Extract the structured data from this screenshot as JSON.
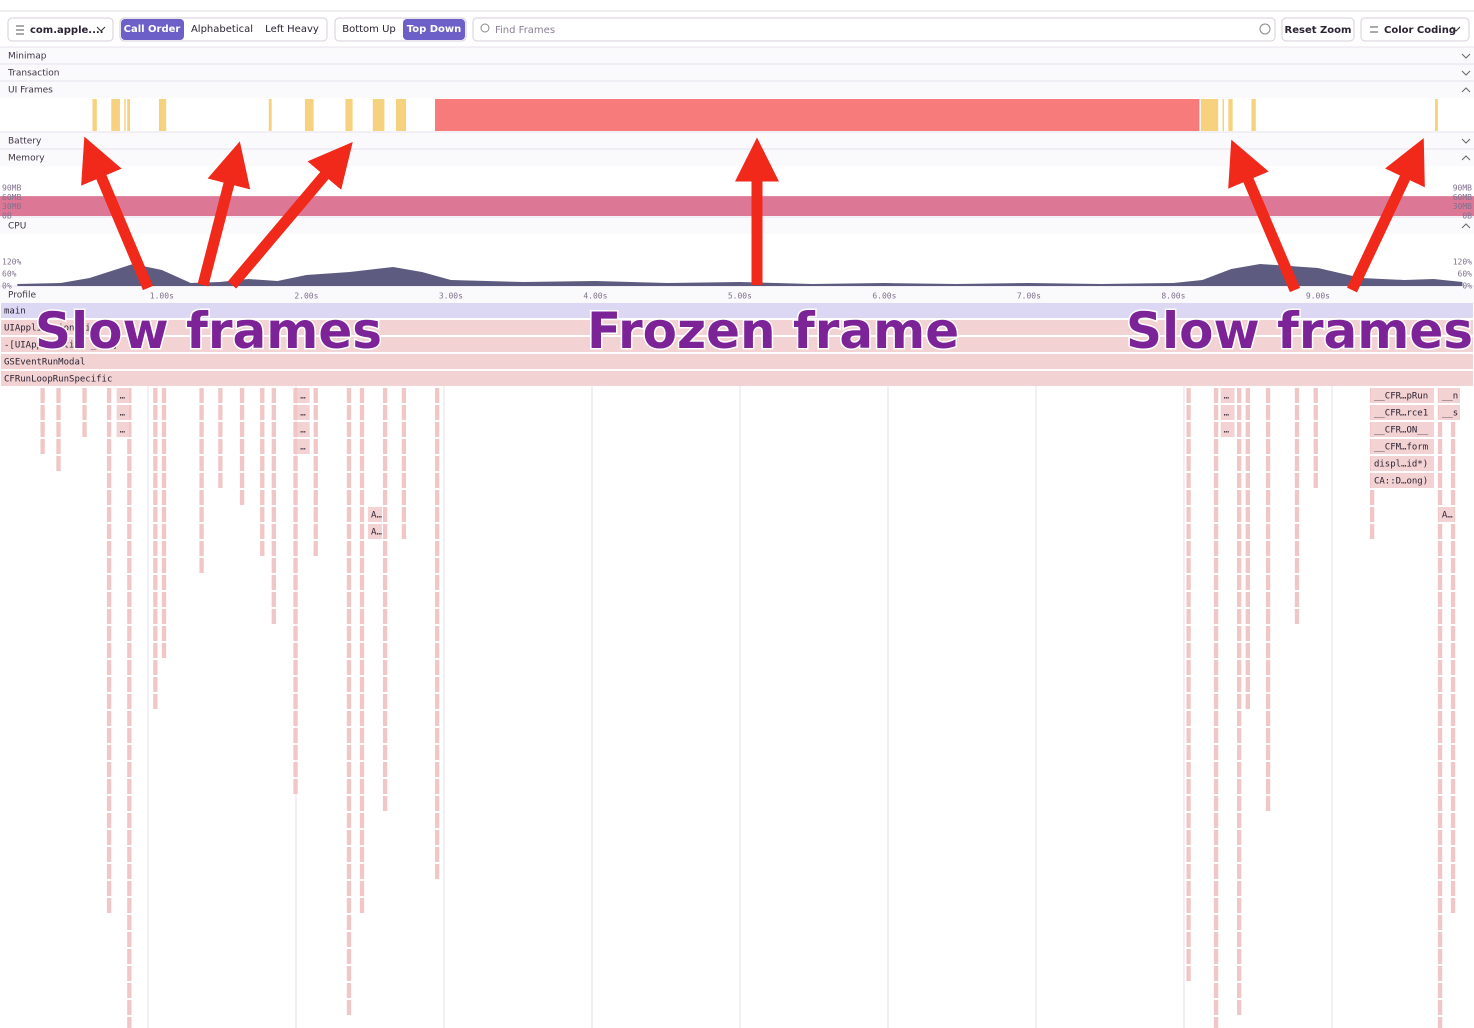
{
  "toolbar": {
    "thread": "com.apple....",
    "sort_modes": [
      "Call Order",
      "Alphabetical",
      "Left Heavy"
    ],
    "directions": [
      "Bottom Up",
      "Top Down"
    ],
    "search_placeholder": "Find Frames",
    "reset_zoom": "Reset Zoom",
    "color_coding": "Color Coding"
  },
  "sections": [
    "Minimap",
    "Transaction",
    "UI Frames",
    "Battery",
    "Memory",
    "CPU",
    "Profile"
  ],
  "timeline": {
    "xlim": [
      -0.12,
      10.08
    ],
    "xticks": [
      {
        "value": 1,
        "label": "1.00s"
      },
      {
        "value": 2,
        "label": "2.00s"
      },
      {
        "value": 3,
        "label": "3.00s"
      },
      {
        "value": 4,
        "label": "4.00s"
      },
      {
        "value": 5,
        "label": "5.00s"
      },
      {
        "value": 6,
        "label": "6.00s"
      },
      {
        "value": 7,
        "label": "7.00s"
      },
      {
        "value": 8,
        "label": "8.00s"
      },
      {
        "value": 9,
        "label": "9.00s"
      }
    ]
  },
  "ui_frames": {
    "slow_color": "#f6d27e",
    "frozen_color": "#f77b7b",
    "slow": [
      [
        0.52,
        0.55
      ],
      [
        0.65,
        0.71
      ],
      [
        0.74,
        0.75
      ],
      [
        0.76,
        0.78
      ],
      [
        0.98,
        1.03
      ],
      [
        1.74,
        1.76
      ],
      [
        1.99,
        2.05
      ],
      [
        2.27,
        2.32
      ],
      [
        2.46,
        2.54
      ],
      [
        2.62,
        2.69
      ],
      [
        8.19,
        8.31
      ],
      [
        8.34,
        8.35
      ],
      [
        8.38,
        8.41
      ],
      [
        8.54,
        8.57
      ],
      [
        9.81,
        9.83
      ]
    ],
    "frozen": [
      [
        2.89,
        8.18
      ]
    ]
  },
  "memory": {
    "ylim": [
      0,
      90
    ],
    "yticks": [
      {
        "value": 90,
        "label": "90MB"
      },
      {
        "value": 60,
        "label": "60MB"
      },
      {
        "value": 30,
        "label": "30MB"
      },
      {
        "value": 0,
        "label": "0B"
      }
    ],
    "x": [
      -0.12,
      10.08
    ],
    "values": [
      64,
      64
    ],
    "color": "#dc7896"
  },
  "cpu": {
    "ylim": [
      0,
      120
    ],
    "yticks": [
      {
        "value": 120,
        "label": "120%"
      },
      {
        "value": 60,
        "label": "60%"
      },
      {
        "value": 0,
        "label": "0%"
      }
    ],
    "x": [
      0,
      0.3,
      0.5,
      0.8,
      1.0,
      1.2,
      1.4,
      1.6,
      1.8,
      2.0,
      2.3,
      2.6,
      2.8,
      3.0,
      3.5,
      4.0,
      4.5,
      5.0,
      5.5,
      6.0,
      6.5,
      7.0,
      7.5,
      8.0,
      8.2,
      8.4,
      8.6,
      9.0,
      9.3,
      9.6,
      9.8,
      10.0
    ],
    "values": [
      10,
      15,
      40,
      110,
      80,
      15,
      20,
      35,
      25,
      55,
      70,
      95,
      70,
      30,
      20,
      25,
      15,
      20,
      10,
      15,
      10,
      15,
      10,
      15,
      30,
      85,
      110,
      90,
      40,
      30,
      35,
      20
    ],
    "color": "#5d5b80"
  },
  "flamegraph": {
    "frames": [
      {
        "name": "main",
        "depth": 0,
        "start": -0.12,
        "end": 10.08
      },
      {
        "name": "UIApplicationMain",
        "depth": 1,
        "start": -0.12,
        "end": 10.08
      },
      {
        "name": "-[UIApplication _run]",
        "depth": 2,
        "start": -0.12,
        "end": 10.08
      },
      {
        "name": "GSEventRunModal",
        "depth": 3,
        "start": -0.12,
        "end": 10.08
      },
      {
        "name": "CFRunLoopRunSpecific",
        "depth": 4,
        "start": -0.12,
        "end": 10.08
      },
      {
        "name": "__CFR…pRun",
        "depth": 5,
        "start": 9.36,
        "end": 9.81
      },
      {
        "name": "__CFR…rce1",
        "depth": 6,
        "start": 9.36,
        "end": 9.81
      },
      {
        "name": "__CFR…ON__",
        "depth": 7,
        "start": 9.36,
        "end": 9.81
      },
      {
        "name": "__CFM…form",
        "depth": 8,
        "start": 9.36,
        "end": 9.81
      },
      {
        "name": "displ…id*)",
        "depth": 9,
        "start": 9.36,
        "end": 9.81
      },
      {
        "name": "CA::D…ong)",
        "depth": 10,
        "start": 9.36,
        "end": 9.81
      },
      {
        "name": "__n",
        "depth": 5,
        "start": 9.83,
        "end": 9.99
      },
      {
        "name": "__s",
        "depth": 6,
        "start": 9.83,
        "end": 9.99
      },
      {
        "name": "A…",
        "depth": 12,
        "start": 9.83,
        "end": 9.95
      },
      {
        "name": "A…",
        "depth": 12,
        "start": 2.42,
        "end": 2.53
      },
      {
        "name": "A…",
        "depth": 13,
        "start": 2.42,
        "end": 2.53
      },
      {
        "name": "…",
        "depth": 5,
        "start": 0.68,
        "end": 0.78
      },
      {
        "name": "…",
        "depth": 6,
        "start": 0.68,
        "end": 0.78
      },
      {
        "name": "…",
        "depth": 7,
        "start": 0.68,
        "end": 0.78
      },
      {
        "name": "…",
        "depth": 5,
        "start": 1.93,
        "end": 2.03
      },
      {
        "name": "…",
        "depth": 6,
        "start": 1.93,
        "end": 2.03
      },
      {
        "name": "…",
        "depth": 7,
        "start": 1.93,
        "end": 2.03
      },
      {
        "name": "…",
        "depth": 8,
        "start": 1.93,
        "end": 2.03
      },
      {
        "name": "…",
        "depth": 5,
        "start": 8.32,
        "end": 8.43
      },
      {
        "name": "…",
        "depth": 6,
        "start": 8.32,
        "end": 8.43
      },
      {
        "name": "…",
        "depth": 7,
        "start": 8.32,
        "end": 8.43
      }
    ],
    "stacks": [
      {
        "start": 0.16,
        "end": 0.19,
        "depth": 8
      },
      {
        "start": 0.27,
        "end": 0.3,
        "depth": 9
      },
      {
        "start": 0.45,
        "end": 0.48,
        "depth": 7
      },
      {
        "start": 0.62,
        "end": 0.65,
        "depth": 35
      },
      {
        "start": 0.76,
        "end": 0.79,
        "depth": 42
      },
      {
        "start": 0.94,
        "end": 0.97,
        "depth": 23
      },
      {
        "start": 1.0,
        "end": 1.03,
        "depth": 20
      },
      {
        "start": 1.26,
        "end": 1.29,
        "depth": 15
      },
      {
        "start": 1.39,
        "end": 1.42,
        "depth": 10
      },
      {
        "start": 1.54,
        "end": 1.57,
        "depth": 11
      },
      {
        "start": 1.68,
        "end": 1.71,
        "depth": 14
      },
      {
        "start": 1.76,
        "end": 1.79,
        "depth": 18
      },
      {
        "start": 1.91,
        "end": 1.94,
        "depth": 28
      },
      {
        "start": 2.05,
        "end": 2.08,
        "depth": 14
      },
      {
        "start": 2.28,
        "end": 2.31,
        "depth": 41
      },
      {
        "start": 2.37,
        "end": 2.4,
        "depth": 35
      },
      {
        "start": 2.53,
        "end": 2.56,
        "depth": 29
      },
      {
        "start": 2.66,
        "end": 2.69,
        "depth": 13
      },
      {
        "start": 2.89,
        "end": 2.92,
        "depth": 33
      },
      {
        "start": 8.09,
        "end": 8.12,
        "depth": 39
      },
      {
        "start": 8.28,
        "end": 8.31,
        "depth": 42
      },
      {
        "start": 8.44,
        "end": 8.47,
        "depth": 41
      },
      {
        "start": 8.5,
        "end": 8.53,
        "depth": 23
      },
      {
        "start": 8.64,
        "end": 8.67,
        "depth": 29
      },
      {
        "start": 8.84,
        "end": 8.87,
        "depth": 18
      },
      {
        "start": 8.97,
        "end": 9.0,
        "depth": 10
      },
      {
        "start": 9.36,
        "end": 9.39,
        "depth": 13
      },
      {
        "start": 9.83,
        "end": 9.86,
        "depth": 42
      },
      {
        "start": 9.92,
        "end": 9.95,
        "depth": 35
      }
    ]
  },
  "annotations": [
    {
      "text": "Slow frames"
    },
    {
      "text": "Frozen frame"
    },
    {
      "text": "Slow frames"
    }
  ]
}
